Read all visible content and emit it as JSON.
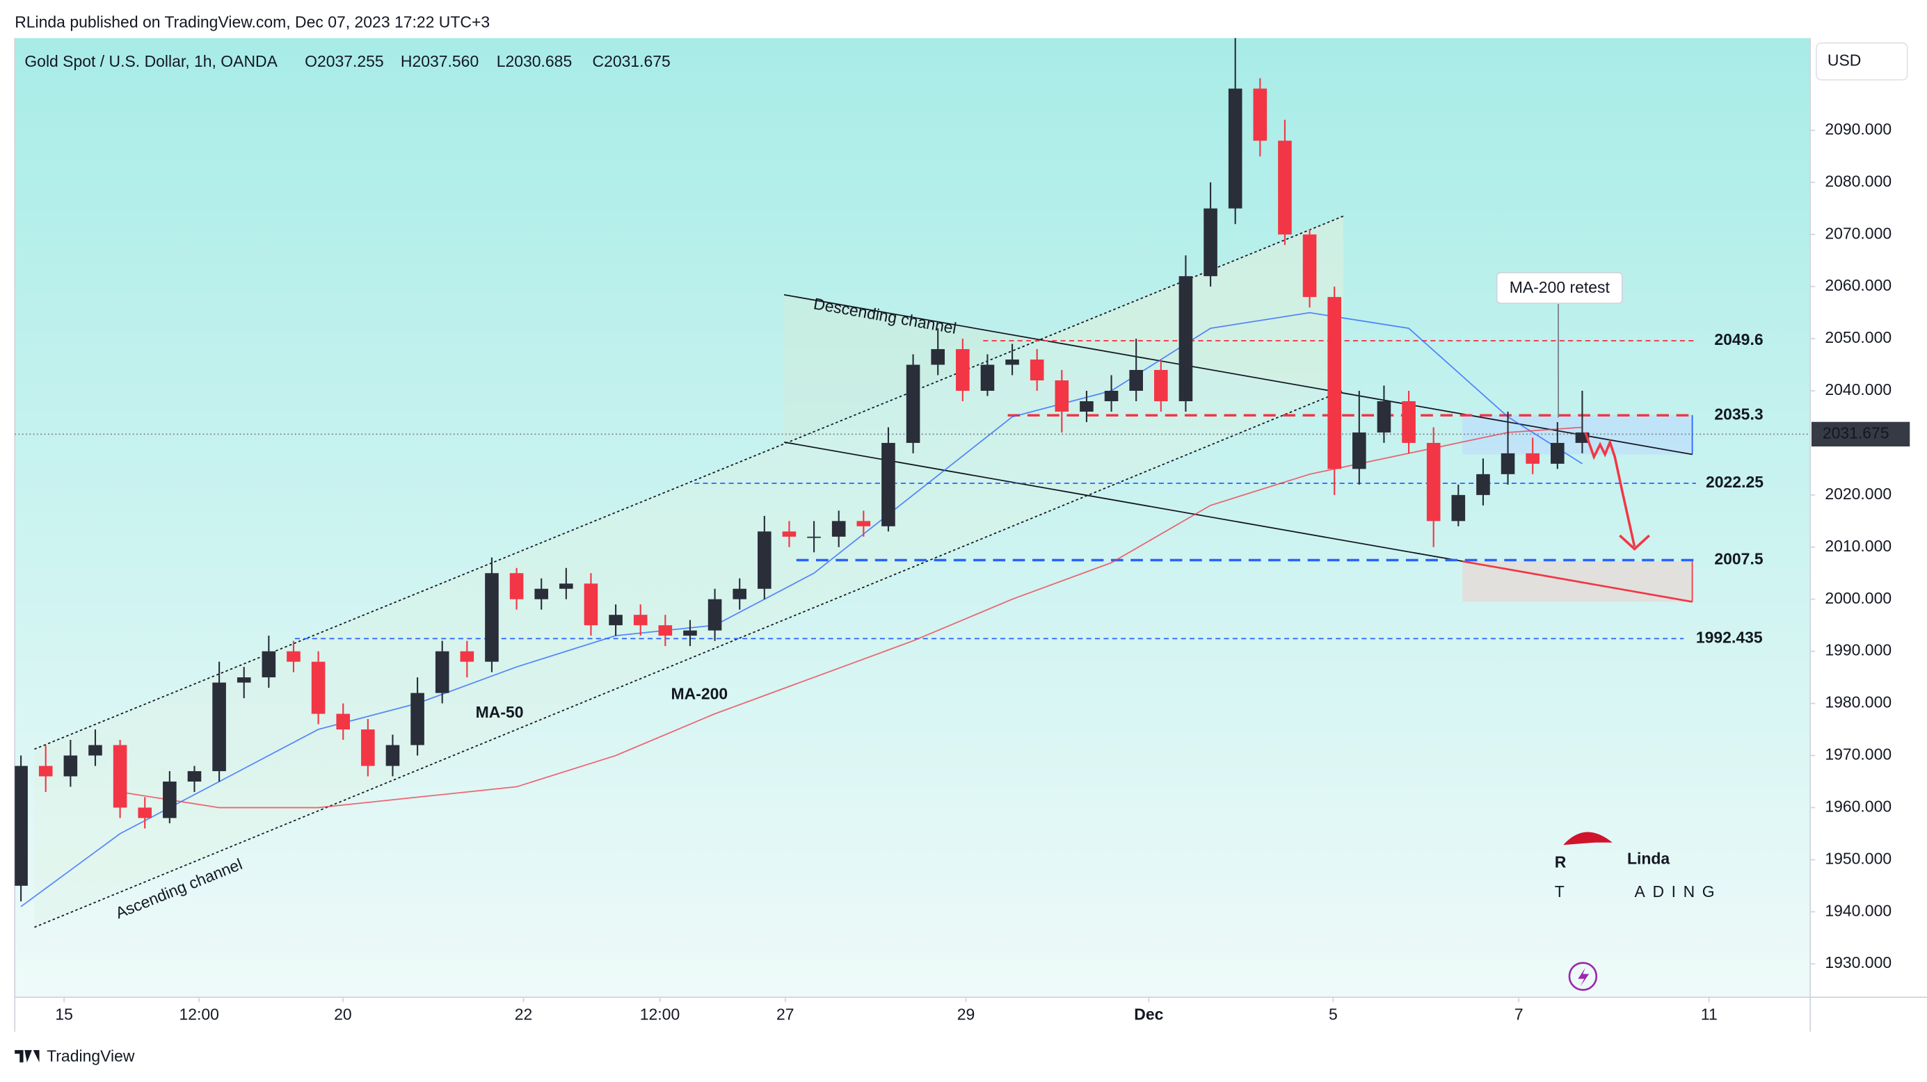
{
  "header": "RLinda published on TradingView.com, Dec 07, 2023 17:22 UTC+3",
  "footer": "TradingView",
  "logo": {
    "mark": "R",
    "name": "Linda",
    "t": "T",
    "rest": "ADING"
  },
  "chart_data": {
    "type": "candlestick",
    "title": "Gold Spot / U.S. Dollar, 1h, OANDA",
    "ohlc_labels": [
      "O2037.255",
      "H2037.560",
      "L2030.685",
      "C2031.675"
    ],
    "currency": "USD",
    "up_color": "#2a2e39",
    "down_color": "#f23645",
    "open": [
      1945,
      1968,
      1966,
      1970,
      1972,
      1960,
      1958,
      1965,
      1967,
      1984,
      1985,
      1990,
      1988,
      1978,
      1975,
      1968,
      1972,
      1982,
      1990,
      1988,
      2005,
      2000,
      2002,
      2003,
      1995,
      1997,
      1995,
      1993,
      1994,
      2000,
      2002,
      2013,
      2012,
      2012,
      2015,
      2014,
      2030,
      2045,
      2048,
      2040,
      2045,
      2046,
      2042,
      2036,
      2038,
      2040,
      2044,
      2038,
      2062,
      2075,
      2098,
      2088,
      2070,
      2058,
      2025,
      2032,
      2038,
      2030,
      2015,
      2020,
      2024,
      2028,
      2026,
      2030
    ],
    "high": [
      1970,
      1972,
      1973,
      1975,
      1973,
      1962,
      1967,
      1968,
      1988,
      1987,
      1993,
      1992,
      1990,
      1980,
      1977,
      1974,
      1985,
      1992,
      1992,
      2008,
      2006,
      2004,
      2006,
      2005,
      1999,
      1999,
      1997,
      1996,
      2002,
      2004,
      2016,
      2015,
      2015,
      2017,
      2017,
      2033,
      2047,
      2052,
      2050,
      2047,
      2049,
      2048,
      2044,
      2040,
      2043,
      2050,
      2046,
      2066,
      2080,
      2108,
      2100,
      2092,
      2071,
      2060,
      2040,
      2041,
      2040,
      2033,
      2022,
      2027,
      2036,
      2031,
      2034,
      2040
    ],
    "low": [
      1942,
      1963,
      1964,
      1968,
      1958,
      1956,
      1957,
      1963,
      1965,
      1981,
      1983,
      1986,
      1976,
      1973,
      1966,
      1966,
      1970,
      1980,
      1985,
      1986,
      1998,
      1998,
      2000,
      1993,
      1993,
      1993,
      1991,
      1991,
      1992,
      1998,
      2000,
      2010,
      2009,
      2010,
      2012,
      2013,
      2028,
      2043,
      2038,
      2039,
      2043,
      2040,
      2032,
      2034,
      2036,
      2038,
      2036,
      2036,
      2060,
      2072,
      2085,
      2068,
      2056,
      2020,
      2022,
      2030,
      2028,
      2010,
      2014,
      2018,
      2022,
      2024,
      2025,
      2028
    ],
    "close": [
      1968,
      1966,
      1970,
      1972,
      1960,
      1958,
      1965,
      1967,
      1984,
      1985,
      1990,
      1988,
      1978,
      1975,
      1968,
      1972,
      1982,
      1990,
      1988,
      2005,
      2000,
      2002,
      2003,
      1995,
      1997,
      1995,
      1993,
      1994,
      2000,
      2002,
      2013,
      2012,
      2012,
      2015,
      2014,
      2030,
      2045,
      2048,
      2040,
      2045,
      2046,
      2042,
      2036,
      2038,
      2040,
      2044,
      2038,
      2062,
      2075,
      2098,
      2088,
      2070,
      2058,
      2025,
      2032,
      2038,
      2030,
      2015,
      2020,
      2024,
      2028,
      2026,
      2030,
      2032
    ],
    "series": [
      {
        "name": "MA-50",
        "color": "#2962ff",
        "x": [
          0,
          4,
          8,
          12,
          16,
          20,
          24,
          28,
          32,
          36,
          40,
          44,
          48,
          52,
          56,
          60,
          63
        ],
        "values": [
          1941,
          1955,
          1965,
          1975,
          1980,
          1987,
          1993,
          1995,
          2005,
          2020,
          2035,
          2040,
          2052,
          2055,
          2052,
          2035,
          2026
        ]
      },
      {
        "name": "MA-200",
        "color": "#f23645",
        "x": [
          4,
          8,
          12,
          16,
          20,
          24,
          28,
          32,
          36,
          40,
          44,
          48,
          52,
          56,
          60,
          63
        ],
        "values": [
          1963,
          1960,
          1960,
          1962,
          1964,
          1970,
          1978,
          1985,
          1992,
          2000,
          2007,
          2018,
          2024,
          2028,
          2032,
          2033
        ]
      }
    ],
    "levels": [
      2049.6,
      2035.3,
      2022.25,
      2007.5,
      1992.435
    ],
    "last_price": 2031.675,
    "annotations": [
      "Descending channel",
      "Ascending channel",
      "MA-200 retest"
    ],
    "xlim": [
      -0.25,
      72.2
    ],
    "ylim": [
      1923.6,
      2107.7
    ],
    "xticks": [
      {
        "value": 1.74,
        "label": "15"
      },
      {
        "value": 7.19,
        "label": "12:00"
      },
      {
        "value": 12.99,
        "label": "20"
      },
      {
        "value": 20.28,
        "label": "22"
      },
      {
        "value": 25.78,
        "label": "12:00"
      },
      {
        "value": 30.84,
        "label": "27"
      },
      {
        "value": 38.13,
        "label": "29"
      },
      {
        "value": 45.51,
        "label": "Dec"
      },
      {
        "value": 52.95,
        "label": "5"
      },
      {
        "value": 60.44,
        "label": "7"
      },
      {
        "value": 68.12,
        "label": "11"
      }
    ],
    "yticks": [
      {
        "value": 1930,
        "label": "1930.000"
      },
      {
        "value": 1940,
        "label": "1940.000"
      },
      {
        "value": 1950,
        "label": "1950.000"
      },
      {
        "value": 1960,
        "label": "1960.000"
      },
      {
        "value": 1970,
        "label": "1970.000"
      },
      {
        "value": 1980,
        "label": "1980.000"
      },
      {
        "value": 1990,
        "label": "1990.000"
      },
      {
        "value": 2000,
        "label": "2000.000"
      },
      {
        "value": 2010,
        "label": "2010.000"
      },
      {
        "value": 2020,
        "label": "2020.000"
      },
      {
        "value": 2040,
        "label": "2040.000"
      },
      {
        "value": 2050,
        "label": "2050.000"
      },
      {
        "value": 2060,
        "label": "2060.000"
      },
      {
        "value": 2070,
        "label": "2070.000"
      },
      {
        "value": 2080,
        "label": "2080.000"
      },
      {
        "value": 2090,
        "label": "2090.000"
      }
    ]
  }
}
